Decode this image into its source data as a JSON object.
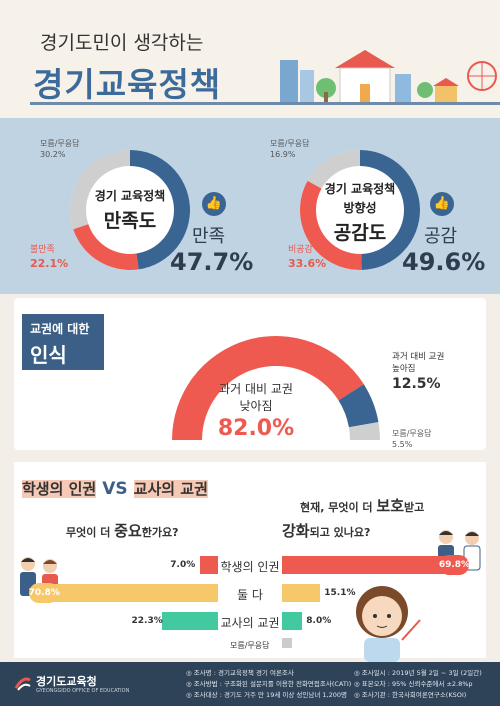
{
  "header": {
    "subtitle": "경기도민이 생각하는",
    "title": "경기교육정책"
  },
  "satisfaction": {
    "center_line1": "경기 교육정책",
    "center_line2": "만족도",
    "positive_label": "만족",
    "positive_pct": "47.7%",
    "positive_value": 47.7,
    "negative_label": "불만족",
    "negative_pct": "22.1%",
    "negative_value": 22.1,
    "unknown_label": "모름/무응답",
    "unknown_pct": "30.2%",
    "unknown_value": 30.2
  },
  "direction": {
    "center_line1": "경기 교육정책",
    "center_line2": "방향성",
    "center_line3": "공감도",
    "positive_label": "공감",
    "positive_pct": "49.6%",
    "positive_value": 49.6,
    "negative_label": "비공감",
    "negative_pct": "33.6%",
    "negative_value": 33.6,
    "unknown_label": "모름/무응답",
    "unknown_pct": "16.9%",
    "unknown_value": 16.9
  },
  "teacher_rights": {
    "tag_line1": "교권에 대한",
    "tag_line2": "인식",
    "lower_label1": "과거 대비 교권",
    "lower_label2": "낮아짐",
    "lower_pct": "82.0%",
    "lower_value": 82.0,
    "higher_label1": "과거 대비 교권",
    "higher_label2": "높아짐",
    "higher_pct": "12.5%",
    "higher_value": 12.5,
    "unknown_label": "모름/무응답",
    "unknown_pct": "5.5%",
    "unknown_value": 5.5
  },
  "comparison": {
    "title_left": "학생의 인권",
    "title_vs": "VS",
    "title_right": "교사의 교권",
    "q_left_a": "무엇이 더 ",
    "q_left_b": "중요",
    "q_left_c": "한가요?",
    "q_right_1a": "현재, 무엇이 더 ",
    "q_right_1b": "보호",
    "q_right_1c": "받고",
    "q_right_2a": "강화",
    "q_right_2b": "되고 있나요?",
    "rows": [
      {
        "label": "학생의 인권",
        "left_pct": "7.0%",
        "left": 7.0,
        "right_pct": "69.8%",
        "right": 69.8
      },
      {
        "label": "둘 다",
        "left_pct": "70.8%",
        "left": 70.8,
        "right_pct": "15.1%",
        "right": 15.1
      },
      {
        "label": "교사의 교권",
        "left_pct": "22.3%",
        "left": 22.3,
        "right_pct": "8.0%",
        "right": 8.0
      }
    ],
    "unknown_label": "모름/무응답",
    "colors": {
      "student": "#ef5a50",
      "both": "#f7c86a",
      "teacher": "#43c9a0",
      "unknown": "#cccccc"
    }
  },
  "footer": {
    "logo_text": "경기도교육청",
    "logo_en": "GYEONGGIDO OFFICE OF EDUCATION",
    "left_lines": [
      "◎ 조사명 : 경기교육정책 경기 여론조사",
      "◎ 조사방법 : 구조화된 설문지를 이용한 전화면접조사(CATI)",
      "◎ 조사대상 : 경기도 거주 만 19세 이상 성인남녀 1,200명"
    ],
    "right_lines": [
      "◎ 조사일시 : 2019년 5월 2일 ~ 3일 (2일간)",
      "◎ 표본오차 : 95% 신뢰수준에서 ±2.8%p",
      "◎ 조사기관 : 한국사회여론연구소(KSOI)"
    ]
  }
}
